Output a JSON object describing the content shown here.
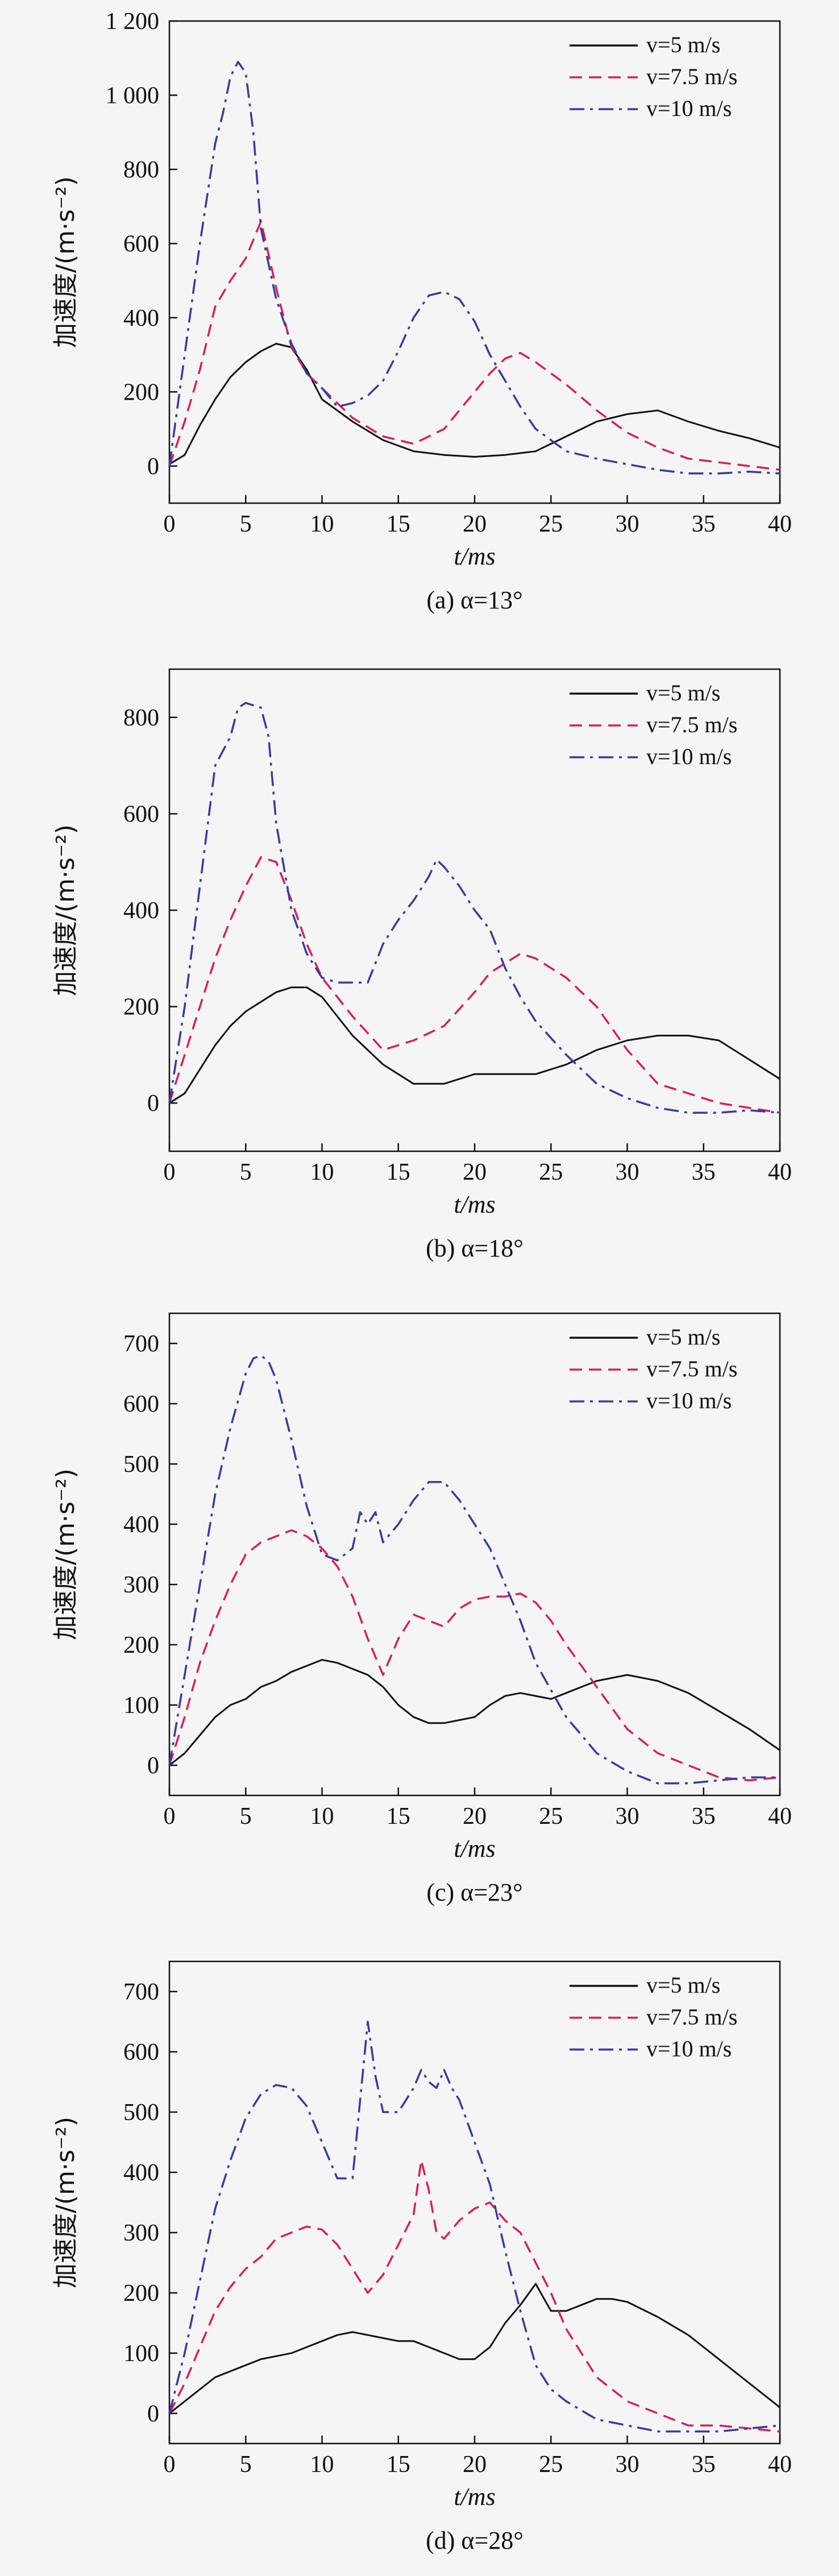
{
  "figure": {
    "legend": [
      "v=5 m/s",
      "v=7.5 m/s",
      "v=10 m/s"
    ],
    "series_colors": [
      "#111111",
      "#d81e5b",
      "#3a3a9e"
    ],
    "series_styles": [
      "solid",
      "dashed",
      "dashdot"
    ]
  },
  "chart_data": [
    {
      "type": "line",
      "title": "(a) α=13°",
      "xlabel": "t/ms",
      "ylabel": "加速度/(m·s⁻²)",
      "xlim": [
        0,
        40
      ],
      "ylim": [
        -100,
        1200
      ],
      "xticks": [
        0,
        5,
        10,
        15,
        20,
        25,
        30,
        35,
        40
      ],
      "xtick_labels": [
        "0",
        "5",
        "10",
        "15",
        "20",
        "25",
        "30",
        "35",
        "40"
      ],
      "yticks": [
        0,
        200,
        400,
        600,
        800,
        1000,
        1200
      ],
      "ytick_labels": [
        "0",
        "200",
        "400",
        "600",
        "800",
        "1 000",
        "1 200"
      ],
      "legend_position": "top-right",
      "grid": false,
      "series": [
        {
          "name": "v=5 m/s",
          "x": [
            0,
            1,
            2,
            3,
            4,
            5,
            6,
            7,
            8,
            9,
            10,
            12,
            14,
            16,
            18,
            20,
            22,
            24,
            26,
            28,
            30,
            32,
            34,
            36,
            38,
            40
          ],
          "y": [
            5,
            30,
            110,
            180,
            240,
            280,
            310,
            330,
            320,
            260,
            180,
            120,
            70,
            40,
            30,
            25,
            30,
            40,
            80,
            120,
            140,
            150,
            120,
            95,
            75,
            50
          ]
        },
        {
          "name": "v=7.5 m/s",
          "x": [
            0,
            1,
            2,
            3,
            4,
            5,
            6,
            7,
            8,
            9,
            10,
            12,
            14,
            16,
            18,
            20,
            21,
            22,
            23,
            24,
            26,
            28,
            30,
            32,
            34,
            36,
            38,
            40
          ],
          "y": [
            0,
            120,
            260,
            430,
            500,
            560,
            660,
            480,
            320,
            250,
            210,
            130,
            80,
            60,
            100,
            200,
            250,
            290,
            305,
            280,
            220,
            150,
            90,
            50,
            20,
            10,
            0,
            -10
          ]
        },
        {
          "name": "v=10 m/s",
          "x": [
            0,
            1,
            2,
            3,
            3.5,
            4,
            4.5,
            5,
            5.5,
            6,
            7,
            8,
            9,
            10,
            11,
            12,
            13,
            14,
            15,
            16,
            17,
            18,
            19,
            20,
            21,
            22,
            23,
            24,
            26,
            28,
            30,
            32,
            34,
            36,
            38,
            40
          ],
          "y": [
            0,
            300,
            600,
            870,
            950,
            1050,
            1090,
            1060,
            900,
            640,
            450,
            330,
            250,
            210,
            160,
            170,
            190,
            230,
            310,
            400,
            460,
            470,
            450,
            390,
            300,
            230,
            160,
            100,
            40,
            20,
            5,
            -10,
            -20,
            -20,
            -15,
            -20
          ]
        }
      ]
    },
    {
      "type": "line",
      "title": "(b) α=18°",
      "xlabel": "t/ms",
      "ylabel": "加速度/(m·s⁻²)",
      "xlim": [
        0,
        40
      ],
      "ylim": [
        -100,
        900
      ],
      "xticks": [
        0,
        5,
        10,
        15,
        20,
        25,
        30,
        35,
        40
      ],
      "xtick_labels": [
        "0",
        "5",
        "10",
        "15",
        "20",
        "25",
        "30",
        "35",
        "40"
      ],
      "yticks": [
        0,
        200,
        400,
        600,
        800
      ],
      "ytick_labels": [
        "0",
        "200",
        "400",
        "600",
        "800"
      ],
      "legend_position": "top-right",
      "grid": false,
      "series": [
        {
          "name": "v=5 m/s",
          "x": [
            0,
            1,
            2,
            3,
            4,
            5,
            6,
            7,
            8,
            9,
            10,
            12,
            14,
            16,
            18,
            20,
            22,
            24,
            26,
            28,
            30,
            32,
            34,
            36,
            38,
            40
          ],
          "y": [
            0,
            20,
            70,
            120,
            160,
            190,
            210,
            230,
            240,
            240,
            220,
            140,
            80,
            40,
            40,
            60,
            60,
            60,
            80,
            110,
            130,
            140,
            140,
            130,
            90,
            50
          ]
        },
        {
          "name": "v=7.5 m/s",
          "x": [
            0,
            1,
            2,
            3,
            4,
            5,
            6,
            7,
            8,
            9,
            10,
            12,
            14,
            16,
            18,
            20,
            21,
            22,
            23,
            24,
            26,
            28,
            30,
            32,
            34,
            36,
            38,
            40
          ],
          "y": [
            0,
            100,
            200,
            300,
            380,
            450,
            510,
            500,
            420,
            330,
            260,
            180,
            110,
            130,
            160,
            230,
            270,
            290,
            310,
            300,
            260,
            200,
            110,
            40,
            20,
            0,
            -10,
            -20
          ]
        },
        {
          "name": "v=10 m/s",
          "x": [
            0,
            1,
            2,
            3,
            4,
            4.5,
            5,
            6,
            6.5,
            7,
            8,
            9,
            10,
            11,
            12,
            13,
            14,
            15,
            16,
            17,
            17.5,
            18,
            19,
            20,
            21,
            22,
            23,
            24,
            26,
            28,
            30,
            32,
            34,
            36,
            38,
            40
          ],
          "y": [
            0,
            200,
            450,
            700,
            760,
            820,
            830,
            820,
            760,
            580,
            400,
            310,
            260,
            250,
            250,
            250,
            330,
            380,
            420,
            470,
            505,
            490,
            450,
            400,
            360,
            280,
            220,
            170,
            100,
            40,
            10,
            -10,
            -20,
            -20,
            -15,
            -20
          ]
        }
      ]
    },
    {
      "type": "line",
      "title": "(c) α=23°",
      "xlabel": "t/ms",
      "ylabel": "加速度/(m·s⁻²)",
      "xlim": [
        0,
        40
      ],
      "ylim": [
        -50,
        750
      ],
      "xticks": [
        0,
        5,
        10,
        15,
        20,
        25,
        30,
        35,
        40
      ],
      "xtick_labels": [
        "0",
        "5",
        "10",
        "15",
        "20",
        "25",
        "30",
        "35",
        "40"
      ],
      "yticks": [
        0,
        100,
        200,
        300,
        400,
        500,
        600,
        700
      ],
      "ytick_labels": [
        "0",
        "100",
        "200",
        "300",
        "400",
        "500",
        "600",
        "700"
      ],
      "legend_position": "top-right",
      "grid": false,
      "series": [
        {
          "name": "v=5 m/s",
          "x": [
            0,
            1,
            2,
            3,
            4,
            5,
            6,
            7,
            8,
            9,
            10,
            11,
            12,
            13,
            14,
            15,
            16,
            17,
            18,
            19,
            20,
            21,
            22,
            23,
            24,
            25,
            26,
            28,
            30,
            32,
            34,
            36,
            38,
            40
          ],
          "y": [
            0,
            20,
            50,
            80,
            100,
            110,
            130,
            140,
            155,
            165,
            175,
            170,
            160,
            150,
            130,
            100,
            80,
            70,
            70,
            75,
            80,
            100,
            115,
            120,
            115,
            110,
            120,
            140,
            150,
            140,
            120,
            90,
            60,
            25
          ]
        },
        {
          "name": "v=7.5 m/s",
          "x": [
            0,
            1,
            2,
            3,
            4,
            5,
            6,
            7,
            8,
            9,
            10,
            11,
            12,
            13,
            14,
            15,
            16,
            17,
            18,
            19,
            20,
            21,
            22,
            23,
            24,
            25,
            26,
            28,
            30,
            32,
            34,
            36,
            38,
            40
          ],
          "y": [
            0,
            80,
            170,
            240,
            300,
            350,
            370,
            380,
            390,
            380,
            360,
            330,
            280,
            210,
            150,
            210,
            250,
            240,
            230,
            260,
            275,
            280,
            280,
            285,
            270,
            240,
            200,
            130,
            60,
            20,
            0,
            -20,
            -25,
            -20
          ]
        },
        {
          "name": "v=10 m/s",
          "x": [
            0,
            1,
            2,
            3,
            4,
            5,
            5.5,
            6,
            6.5,
            7,
            8,
            9,
            10,
            11,
            12,
            12.5,
            13,
            13.5,
            14,
            15,
            16,
            17,
            18,
            19,
            20,
            21,
            22,
            23,
            24,
            26,
            28,
            30,
            32,
            34,
            36,
            38,
            40
          ],
          "y": [
            0,
            150,
            300,
            450,
            560,
            650,
            675,
            680,
            670,
            640,
            540,
            430,
            350,
            340,
            360,
            420,
            400,
            420,
            370,
            400,
            440,
            470,
            470,
            440,
            400,
            360,
            300,
            240,
            170,
            80,
            20,
            -10,
            -30,
            -30,
            -25,
            -20,
            -20
          ]
        }
      ]
    },
    {
      "type": "line",
      "title": "(d) α=28°",
      "xlabel": "t/ms",
      "ylabel": "加速度/(m·s⁻²)",
      "xlim": [
        0,
        40
      ],
      "ylim": [
        -50,
        750
      ],
      "xticks": [
        0,
        5,
        10,
        15,
        20,
        25,
        30,
        35,
        40
      ],
      "xtick_labels": [
        "0",
        "5",
        "10",
        "15",
        "20",
        "25",
        "30",
        "35",
        "40"
      ],
      "yticks": [
        0,
        100,
        200,
        300,
        400,
        500,
        600,
        700
      ],
      "ytick_labels": [
        "0",
        "100",
        "200",
        "300",
        "400",
        "500",
        "600",
        "700"
      ],
      "legend_position": "top-right",
      "grid": false,
      "series": [
        {
          "name": "v=5 m/s",
          "x": [
            0,
            1,
            2,
            3,
            4,
            5,
            6,
            7,
            8,
            9,
            10,
            11,
            12,
            13,
            14,
            15,
            16,
            17,
            18,
            19,
            20,
            21,
            22,
            23,
            24,
            25,
            26,
            27,
            28,
            29,
            30,
            32,
            34,
            36,
            38,
            40
          ],
          "y": [
            0,
            20,
            40,
            60,
            70,
            80,
            90,
            95,
            100,
            110,
            120,
            130,
            135,
            130,
            125,
            120,
            120,
            110,
            100,
            90,
            90,
            110,
            150,
            180,
            215,
            170,
            170,
            180,
            190,
            190,
            185,
            160,
            130,
            90,
            50,
            10
          ]
        },
        {
          "name": "v=7.5 m/s",
          "x": [
            0,
            1,
            2,
            3,
            4,
            5,
            6,
            7,
            8,
            9,
            10,
            11,
            12,
            13,
            14,
            15,
            16,
            16.5,
            17,
            17.5,
            18,
            19,
            20,
            21,
            22,
            23,
            24,
            25,
            26,
            28,
            30,
            32,
            34,
            36,
            38,
            40
          ],
          "y": [
            0,
            50,
            110,
            170,
            210,
            240,
            260,
            290,
            300,
            310,
            305,
            280,
            240,
            200,
            230,
            280,
            330,
            420,
            370,
            300,
            290,
            320,
            340,
            350,
            320,
            300,
            250,
            200,
            140,
            60,
            20,
            0,
            -20,
            -20,
            -25,
            -30
          ]
        },
        {
          "name": "v=10 m/s",
          "x": [
            0,
            1,
            2,
            3,
            4,
            5,
            6,
            7,
            8,
            9,
            10,
            11,
            12,
            12.5,
            13,
            13.5,
            14,
            15,
            16,
            16.5,
            17,
            17.5,
            18,
            18.5,
            19,
            20,
            21,
            22,
            23,
            24,
            25,
            26,
            28,
            30,
            32,
            34,
            36,
            38,
            40
          ],
          "y": [
            0,
            100,
            220,
            340,
            420,
            490,
            530,
            545,
            540,
            510,
            450,
            390,
            390,
            520,
            650,
            560,
            500,
            500,
            540,
            570,
            550,
            540,
            570,
            540,
            520,
            450,
            380,
            270,
            170,
            80,
            40,
            20,
            -10,
            -20,
            -30,
            -30,
            -30,
            -25,
            -20
          ]
        }
      ]
    }
  ]
}
